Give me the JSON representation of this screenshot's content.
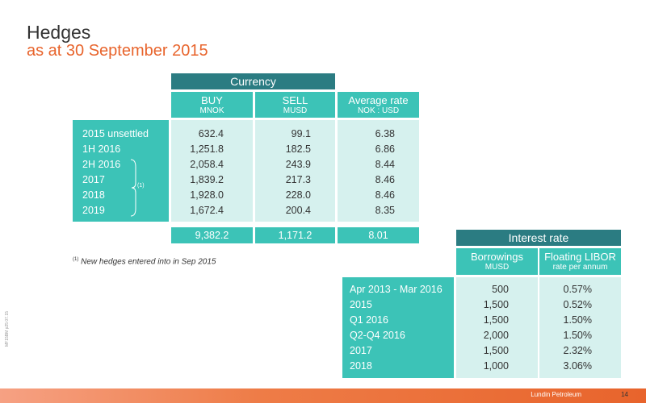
{
  "title": "Hedges",
  "subtitle": "as at 30 September 2015",
  "currency": {
    "header": "Currency",
    "columns": [
      {
        "label": "BUY",
        "unit": "MNOK"
      },
      {
        "label": "SELL",
        "unit": "MUSD"
      },
      {
        "label": "Average rate",
        "unit": "NOK : USD"
      }
    ],
    "rows": [
      {
        "label": "2015 unsettled",
        "buy": "632.4",
        "sell": "99.1",
        "rate": "6.38"
      },
      {
        "label": "1H 2016",
        "buy": "1,251.8",
        "sell": "182.5",
        "rate": "6.86"
      },
      {
        "label": "2H 2016",
        "buy": "2,058.4",
        "sell": "243.9",
        "rate": "8.44"
      },
      {
        "label": "2017",
        "buy": "1,839.2",
        "sell": "217.3",
        "rate": "8.46"
      },
      {
        "label": "2018",
        "buy": "1,928.0",
        "sell": "228.0",
        "rate": "8.46"
      },
      {
        "label": "2019",
        "buy": "1,672.4",
        "sell": "200.4",
        "rate": "8.35"
      }
    ],
    "bracket_note": "(1)",
    "totals": {
      "buy": "9,382.2",
      "sell": "1,171.2",
      "rate": "8.01"
    }
  },
  "footnote": {
    "marker": "(1)",
    "text": "New hedges entered into in Sep 2015"
  },
  "interest": {
    "header": "Interest rate",
    "columns": [
      {
        "label": "Borrowings",
        "unit": "MUSD"
      },
      {
        "label": "Floating LIBOR",
        "unit": "rate per annum"
      }
    ],
    "rows": [
      {
        "label": "Apr 2013 - Mar 2016",
        "borrowings": "500",
        "libor": "0.57%"
      },
      {
        "label": "2015",
        "borrowings": "1,500",
        "libor": "0.52%"
      },
      {
        "label": "Q1 2016",
        "borrowings": "1,500",
        "libor": "1.50%"
      },
      {
        "label": "Q2-Q4 2016",
        "borrowings": "2,000",
        "libor": "1.50%"
      },
      {
        "label": "2017",
        "borrowings": "1,500",
        "libor": "2.32%"
      },
      {
        "label": "2018",
        "borrowings": "1,000",
        "libor": "3.06%"
      }
    ]
  },
  "footer": {
    "brand": "Lundin Petroleum",
    "page": "14",
    "side_code": "MF15BM p25 07.15"
  }
}
